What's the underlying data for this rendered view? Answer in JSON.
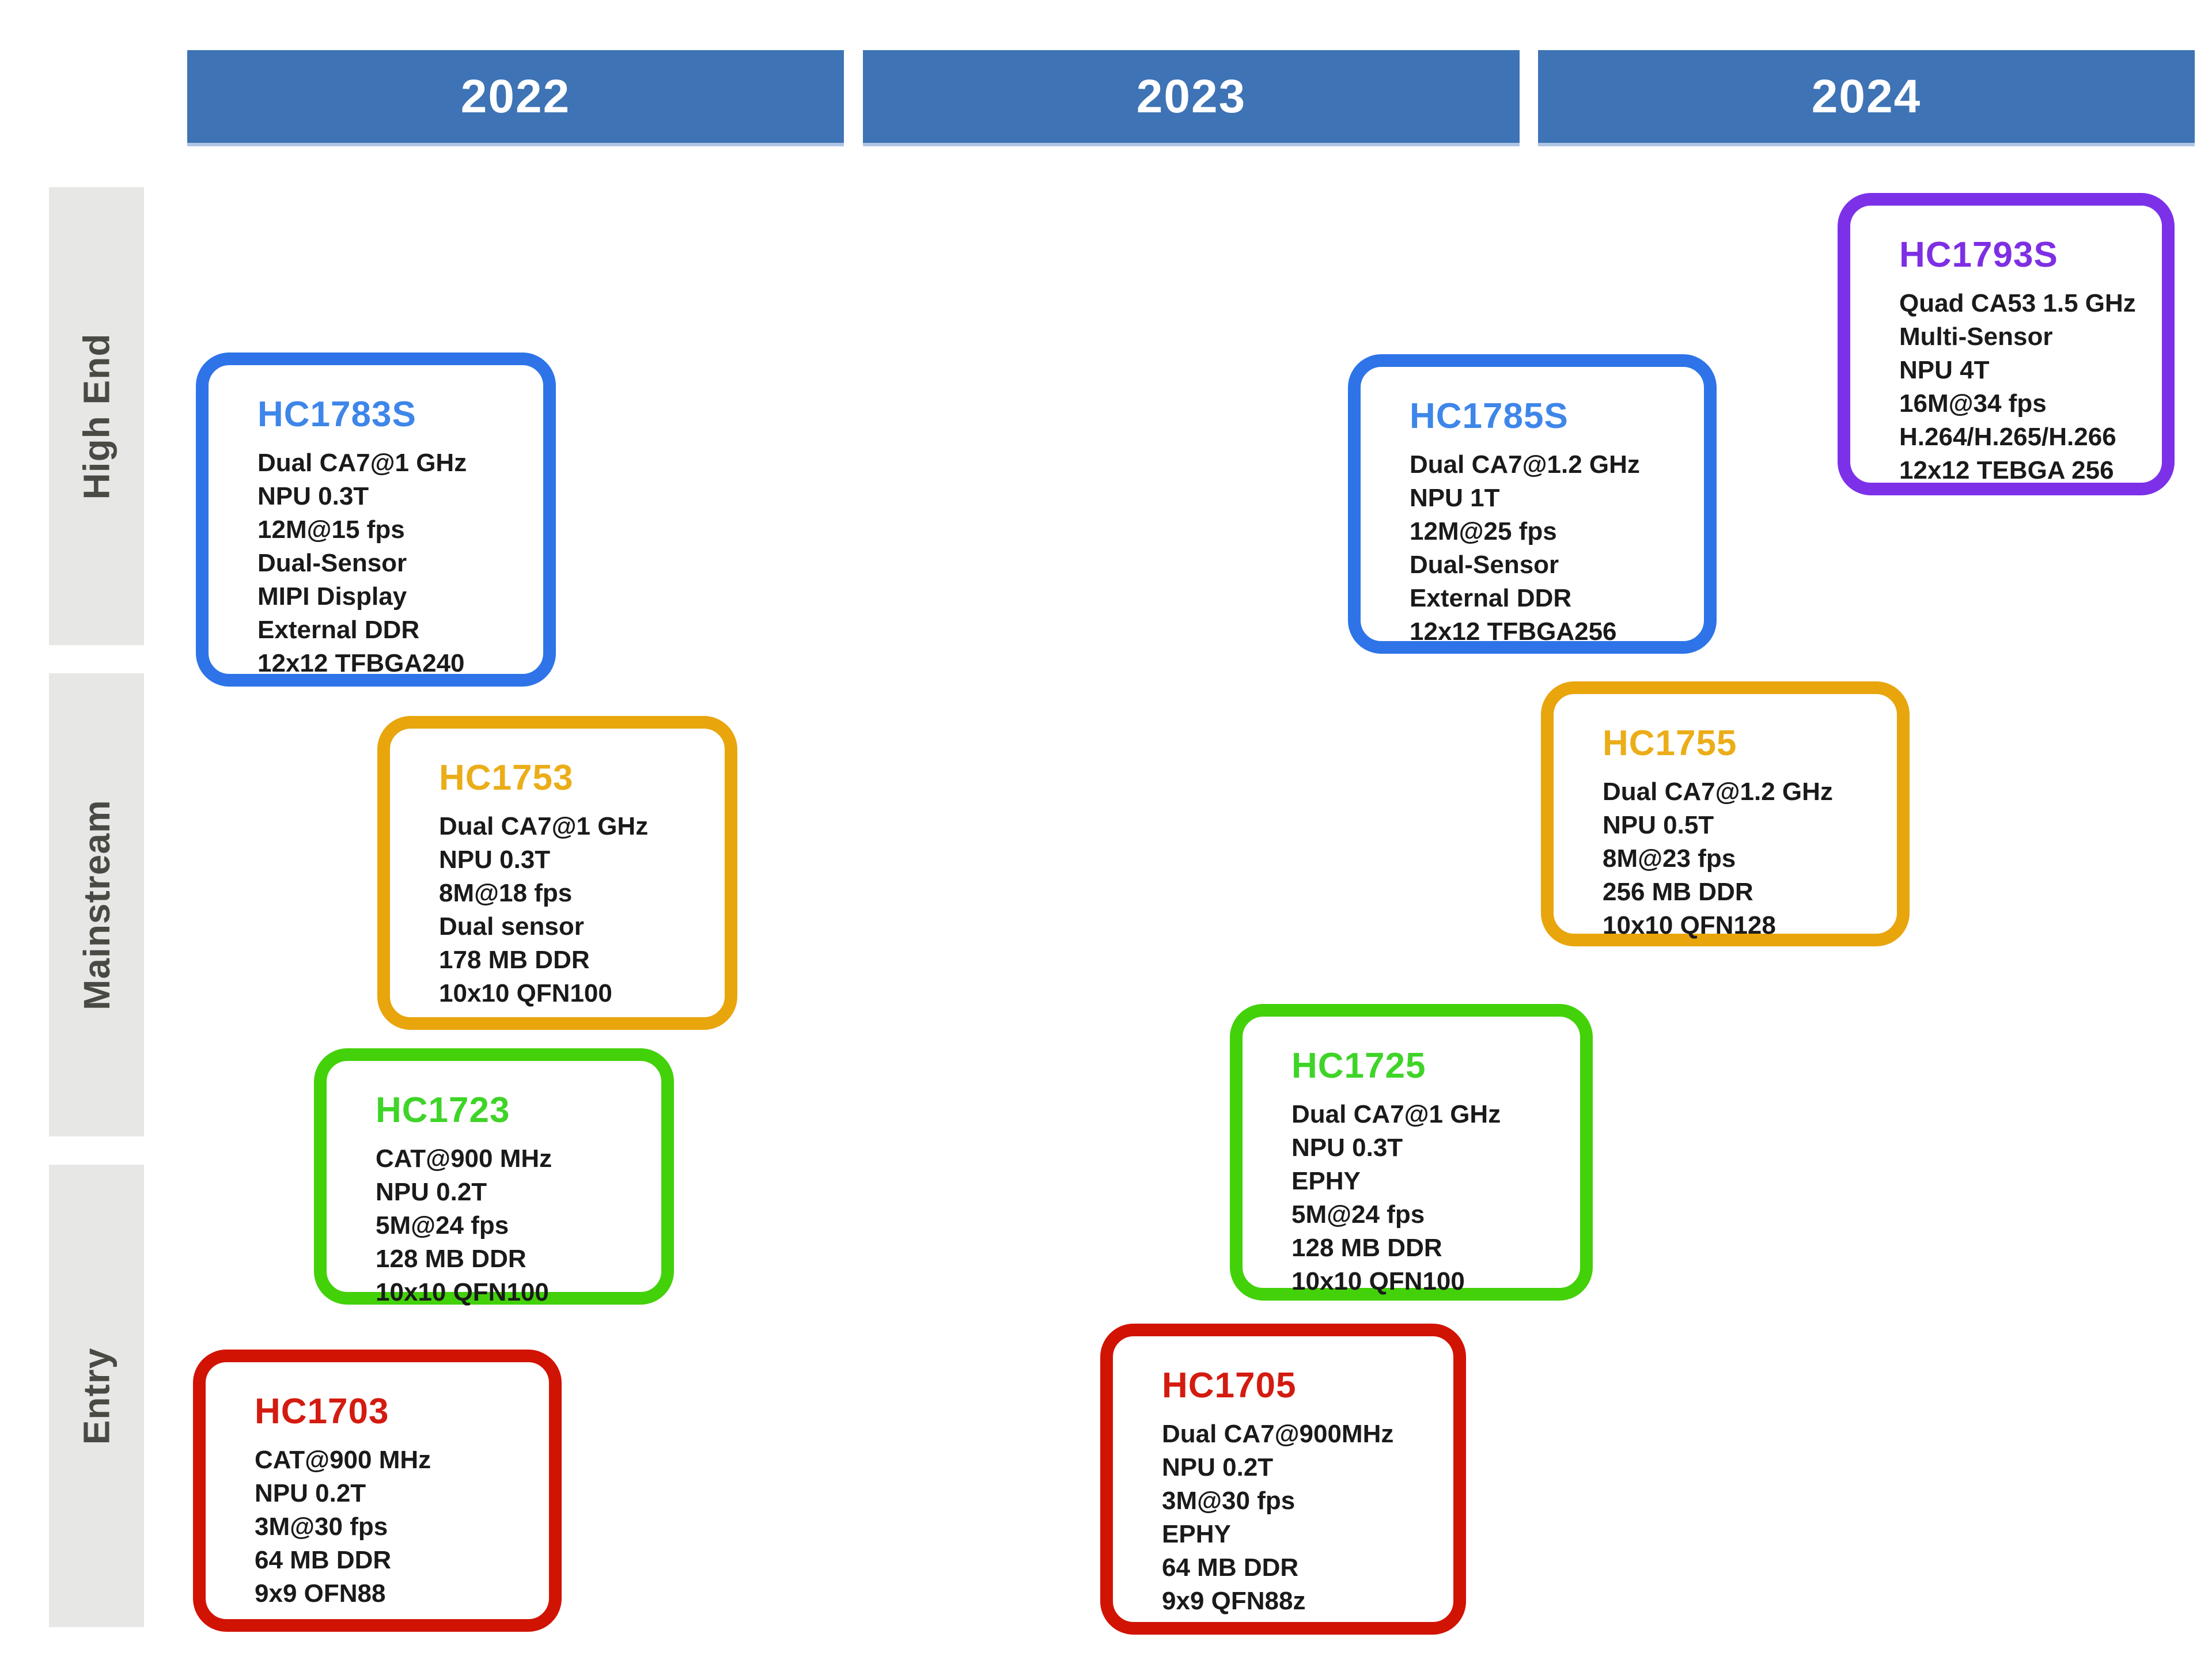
{
  "header": {
    "years": [
      {
        "label": "2022"
      },
      {
        "label": "2023"
      },
      {
        "label": "2024"
      }
    ]
  },
  "rows": [
    {
      "label": "High End"
    },
    {
      "label": "Mainstream"
    },
    {
      "label": "Entry"
    }
  ],
  "colors": {
    "header_blue": "#3E73B5",
    "row_bar_gray": "#E7E7E6",
    "row_label_gray": "#4A4A45",
    "blue": {
      "border": "#2E74E8",
      "title": "#3E86E9"
    },
    "orange": {
      "border": "#E8A50C",
      "title": "#EBAD18"
    },
    "green": {
      "border": "#43D10A",
      "title": "#3FD428"
    },
    "red": {
      "border": "#D11303",
      "title": "#D31B10"
    },
    "purple": {
      "border": "#7C31E9",
      "title": "#7E2FE3"
    }
  },
  "products": [
    {
      "name": "HC1783S",
      "color": "blue",
      "year": "2022",
      "segment": "High End",
      "specs": [
        "Dual CA7@1 GHz",
        "NPU 0.3T",
        "12M@15 fps",
        "Dual-Sensor",
        "MIPI Display",
        "External DDR",
        "12x12 TFBGA240"
      ]
    },
    {
      "name": "HC1785S",
      "color": "blue",
      "year": "2023",
      "segment": "High End",
      "specs": [
        "Dual CA7@1.2 GHz",
        "NPU 1T",
        "12M@25 fps",
        "Dual-Sensor",
        "External DDR",
        "12x12 TFBGA256"
      ]
    },
    {
      "name": "HC1793S",
      "color": "purple",
      "year": "2024",
      "segment": "High End",
      "specs": [
        "Quad CA53 1.5 GHz",
        "Multi-Sensor",
        "NPU 4T",
        "16M@34 fps",
        "H.264/H.265/H.266",
        "12x12 TEBGA 256"
      ]
    },
    {
      "name": "HC1753",
      "color": "orange",
      "year": "2022",
      "segment": "Mainstream",
      "specs": [
        "Dual CA7@1 GHz",
        "NPU 0.3T",
        "8M@18 fps",
        "Dual sensor",
        "178 MB DDR",
        "10x10 QFN100"
      ]
    },
    {
      "name": "HC1755",
      "color": "orange",
      "year": "2024",
      "segment": "Mainstream",
      "specs": [
        "Dual CA7@1.2 GHz",
        "NPU 0.5T",
        "8M@23 fps",
        "256 MB DDR",
        "10x10 QFN128"
      ]
    },
    {
      "name": "HC1723",
      "color": "green",
      "year": "2022",
      "segment": "Mainstream",
      "specs": [
        "CAT@900 MHz",
        "NPU 0.2T",
        "5M@24 fps",
        "128 MB DDR",
        "10x10 QFN100"
      ]
    },
    {
      "name": "HC1725",
      "color": "green",
      "year": "2023",
      "segment": "Mainstream",
      "specs": [
        "Dual CA7@1 GHz",
        "NPU 0.3T",
        "EPHY",
        "5M@24 fps",
        "128 MB DDR",
        "10x10 QFN100"
      ]
    },
    {
      "name": "HC1703",
      "color": "red",
      "year": "2022",
      "segment": "Entry",
      "specs": [
        "CAT@900 MHz",
        "NPU 0.2T",
        "3M@30 fps",
        "64 MB DDR",
        "9x9 OFN88"
      ]
    },
    {
      "name": "HC1705",
      "color": "red",
      "year": "2023",
      "segment": "Entry",
      "specs": [
        "Dual CA7@900MHz",
        "NPU 0.2T",
        "3M@30 fps",
        "EPHY",
        "64 MB DDR",
        "9x9 QFN88z"
      ]
    }
  ]
}
